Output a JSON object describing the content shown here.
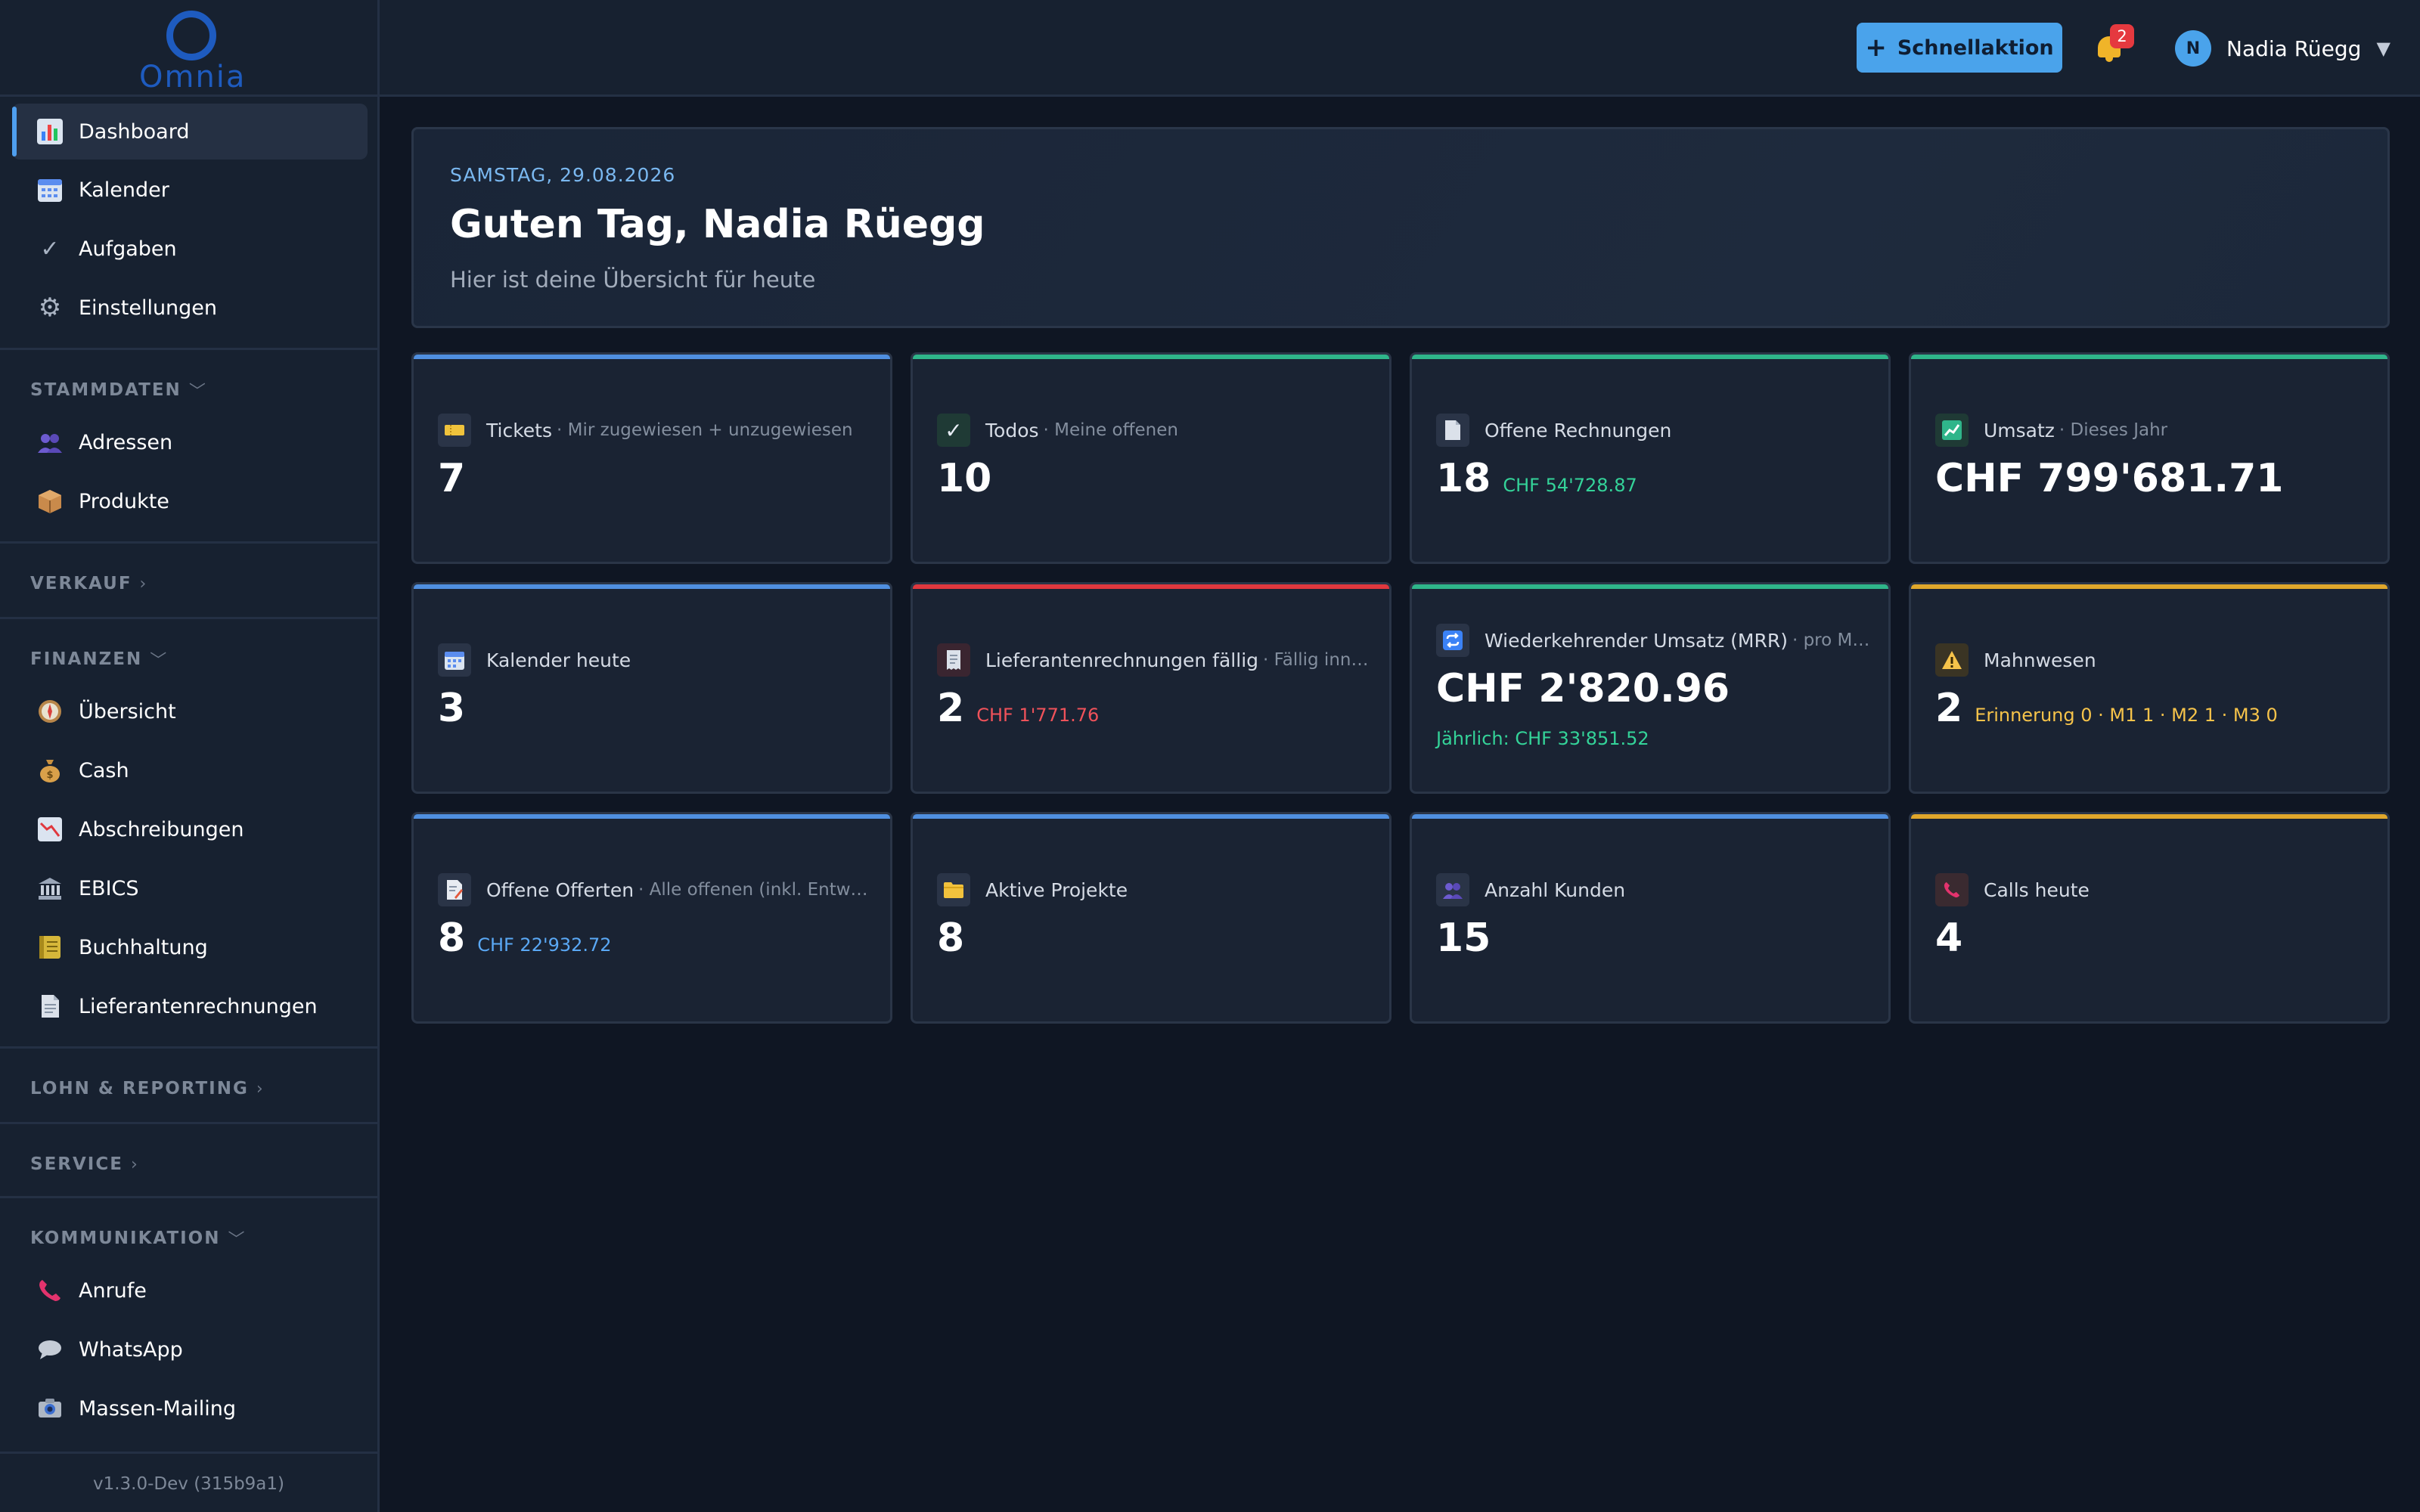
{
  "app": {
    "logo_text": "Omnia",
    "version": "v1.3.0-Dev (315b9a1)"
  },
  "sidebar": {
    "top_items": [
      {
        "label": "Dashboard",
        "icon": "bar-chart-icon"
      },
      {
        "label": "Kalender",
        "icon": "calendar-icon"
      },
      {
        "label": "Aufgaben",
        "icon": "checkmark-icon"
      },
      {
        "label": "Einstellungen",
        "icon": "gear-icon"
      }
    ],
    "sections": [
      {
        "title": "STAMMDATEN",
        "expanded": true,
        "items": [
          {
            "label": "Adressen",
            "icon": "people-icon"
          },
          {
            "label": "Produkte",
            "icon": "package-icon"
          }
        ]
      },
      {
        "title": "VERKAUF",
        "expanded": false,
        "items": []
      },
      {
        "title": "FINANZEN",
        "expanded": true,
        "items": [
          {
            "label": "Übersicht",
            "icon": "compass-icon"
          },
          {
            "label": "Cash",
            "icon": "money-bag-icon"
          },
          {
            "label": "Abschreibungen",
            "icon": "chart-down-icon"
          },
          {
            "label": "EBICS",
            "icon": "bank-icon"
          },
          {
            "label": "Buchhaltung",
            "icon": "ledger-icon"
          },
          {
            "label": "Lieferantenrechnungen",
            "icon": "document-icon"
          }
        ]
      },
      {
        "title": "LOHN & REPORTING",
        "expanded": false,
        "items": []
      },
      {
        "title": "SERVICE",
        "expanded": false,
        "items": []
      },
      {
        "title": "KOMMUNIKATION",
        "expanded": true,
        "items": [
          {
            "label": "Anrufe",
            "icon": "phone-icon"
          },
          {
            "label": "WhatsApp",
            "icon": "chat-bubble-icon"
          },
          {
            "label": "Massen-Mailing",
            "icon": "camera-icon"
          }
        ]
      }
    ]
  },
  "topbar": {
    "quick_action": "Schnellaktion",
    "notification_count": "2",
    "user_initial": "N",
    "user_name": "Nadia Rüegg",
    "caret": "▼"
  },
  "welcome": {
    "date": "SAMSTAG, 29.08.2026",
    "greeting": "Guten Tag, Nadia Rüegg",
    "subtitle": "Hier ist deine Übersicht für heute"
  },
  "colors": {
    "blue": "#4f8fe0",
    "green": "#2fb58a",
    "red": "#e0383e",
    "yellow": "#e0a72b",
    "text_green": "#34d399",
    "text_red": "#f0525a",
    "text_yellow": "#f6c34a",
    "text_blue": "#5aa8f5"
  },
  "cards": [
    {
      "title": "Tickets",
      "subtitle": "· Mir zugewiesen + unzugewiesen",
      "value": "7",
      "extra": "",
      "below": "",
      "accent": "blue",
      "icon": "ticket-icon"
    },
    {
      "title": "Todos",
      "subtitle": "· Meine offenen",
      "value": "10",
      "extra": "",
      "below": "",
      "accent": "green",
      "icon": "checkmark-icon"
    },
    {
      "title": "Offene Rechnungen",
      "subtitle": "",
      "value": "18",
      "extra": "CHF 54'728.87",
      "extra_color": "text_green",
      "below": "",
      "accent": "green",
      "icon": "document-icon"
    },
    {
      "title": "Umsatz",
      "subtitle": "· Dieses Jahr",
      "value": "CHF 799'681.71",
      "extra": "",
      "below": "",
      "accent": "green",
      "icon": "chart-up-icon"
    },
    {
      "title": "Kalender heute",
      "subtitle": "",
      "value": "3",
      "extra": "",
      "below": "",
      "accent": "blue",
      "icon": "calendar-icon"
    },
    {
      "title": "Lieferantenrechnungen fällig",
      "subtitle": "· Fällig inner...",
      "value": "2",
      "extra": "CHF 1'771.76",
      "extra_color": "text_red",
      "below": "",
      "accent": "red",
      "icon": "receipt-icon"
    },
    {
      "title": "Wiederkehrender Umsatz (MRR)",
      "subtitle": "· pro Mo...",
      "value": "CHF 2'820.96",
      "extra": "",
      "below": "Jährlich: CHF 33'851.52",
      "below_color": "text_green",
      "accent": "green",
      "icon": "repeat-icon"
    },
    {
      "title": "Mahnwesen",
      "subtitle": "",
      "value": "2",
      "extra": "Erinnerung 0 · M1 1 · M2 1 · M3 0",
      "extra_color": "text_yellow",
      "below": "",
      "accent": "yellow",
      "icon": "warning-icon"
    },
    {
      "title": "Offene Offerten",
      "subtitle": "· Alle offenen (inkl. Entwurf)",
      "value": "8",
      "extra": "CHF 22'932.72",
      "extra_color": "text_blue",
      "below": "",
      "accent": "blue",
      "icon": "memo-icon"
    },
    {
      "title": "Aktive Projekte",
      "subtitle": "",
      "value": "8",
      "extra": "",
      "below": "",
      "accent": "blue",
      "icon": "folder-icon"
    },
    {
      "title": "Anzahl Kunden",
      "subtitle": "",
      "value": "15",
      "extra": "",
      "below": "",
      "accent": "blue",
      "icon": "people-icon"
    },
    {
      "title": "Calls heute",
      "subtitle": "",
      "value": "4",
      "extra": "",
      "below": "",
      "accent": "yellow",
      "icon": "phone-icon"
    }
  ]
}
